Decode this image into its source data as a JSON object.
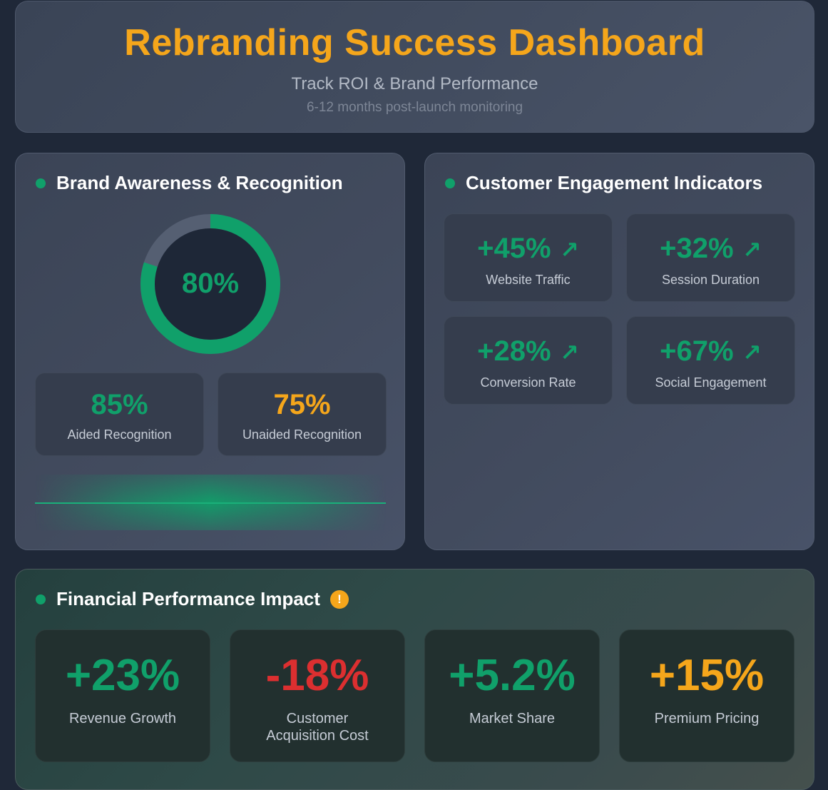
{
  "header": {
    "title": "Rebranding Success Dashboard",
    "subtitle": "Track ROI & Brand Performance",
    "note": "6-12 months post-launch monitoring"
  },
  "awareness": {
    "title": "Brand Awareness & Recognition",
    "ring_value": "80%",
    "ring_fraction": 0.8,
    "aided": {
      "value": "85%",
      "label": "Aided Recognition"
    },
    "unaided": {
      "value": "75%",
      "label": "Unaided Recognition"
    }
  },
  "engagement": {
    "title": "Customer Engagement Indicators",
    "arrow_icon": "↗",
    "items": [
      {
        "value": "+45%",
        "label": "Website Traffic"
      },
      {
        "value": "+32%",
        "label": "Session Duration"
      },
      {
        "value": "+28%",
        "label": "Conversion Rate"
      },
      {
        "value": "+67%",
        "label": "Social Engagement"
      }
    ]
  },
  "financial": {
    "title": "Financial Performance Impact",
    "alert_icon": "!",
    "items": [
      {
        "value": "+23%",
        "label": "Revenue Growth",
        "color": "#10a06a"
      },
      {
        "value": "-18%",
        "label": "Customer Acquisition Cost",
        "color": "#dc2f30"
      },
      {
        "value": "+5.2%",
        "label": "Market Share",
        "color": "#10a06a"
      },
      {
        "value": "+15%",
        "label": "Premium Pricing",
        "color": "#f5a61b"
      }
    ]
  },
  "colors": {
    "accent_green": "#10a06a",
    "accent_orange": "#f5a61b",
    "accent_red": "#dc2f30"
  }
}
